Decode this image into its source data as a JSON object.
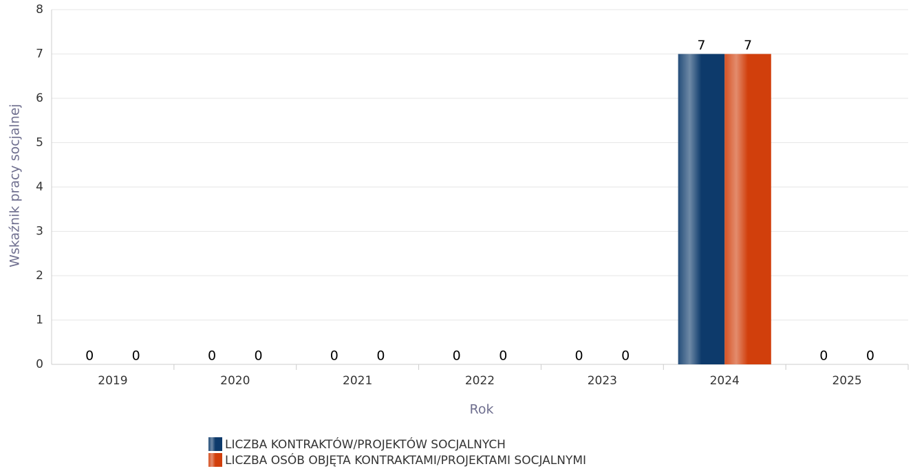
{
  "chart_data": {
    "type": "bar",
    "x_label": "Rok",
    "y_label": "Wskaźnik pracy socjalnej",
    "categories": [
      "2019",
      "2020",
      "2021",
      "2022",
      "2023",
      "2024",
      "2025"
    ],
    "series": [
      {
        "name": "LICZBA KONTRAKTÓW/PROJEKTÓW SOCJALNYCH",
        "color": "#0d3a6b",
        "values": [
          0,
          0,
          0,
          0,
          0,
          7,
          0
        ]
      },
      {
        "name": "LICZBA OSÓB OBJĘTA KONTRAKTAMI/PROJEKTAMI SOCJALNYMI",
        "color": "#d13f0c",
        "values": [
          0,
          0,
          0,
          0,
          0,
          7,
          0
        ]
      }
    ],
    "ylim": [
      0,
      8
    ],
    "yticks": [
      0,
      1,
      2,
      3,
      4,
      5,
      6,
      7,
      8
    ],
    "grid": true,
    "legend": "bottom"
  }
}
